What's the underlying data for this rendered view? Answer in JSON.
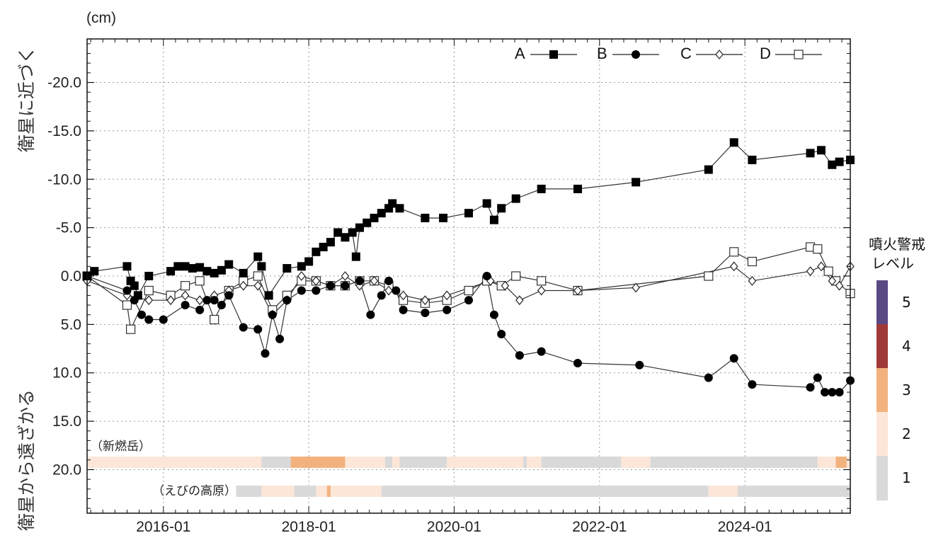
{
  "chart_data": {
    "type": "line",
    "unit_label": "(cm)",
    "ylabel_top": "衛星に近づく",
    "ylabel_bottom": "衛星から遠ざかる",
    "ylim": [
      -24.5,
      24.5
    ],
    "y_reversed": true,
    "y_ticks": [
      -20,
      -15,
      -10,
      -5,
      0,
      5,
      10,
      15,
      20
    ],
    "y_tick_labels": [
      "-20.0",
      "-15.0",
      "-10.0",
      "-5.0",
      "0.0",
      "5.0",
      "10.0",
      "15.0",
      "20.0"
    ],
    "xlim": [
      2014.95,
      2025.45
    ],
    "x_ticks": [
      2016,
      2018,
      2020,
      2022,
      2024
    ],
    "x_tick_labels": [
      "2016-01",
      "2018-01",
      "2020-01",
      "2022-01",
      "2024-01"
    ],
    "grid": true,
    "legend_position": "top-right",
    "series": [
      {
        "name": "A",
        "marker": "filled-square",
        "x": [
          2014.95,
          2015.05,
          2015.5,
          2015.55,
          2015.6,
          2015.65,
          2015.8,
          2016.1,
          2016.2,
          2016.3,
          2016.4,
          2016.5,
          2016.6,
          2016.7,
          2016.8,
          2016.9,
          2017.1,
          2017.3,
          2017.35,
          2017.45,
          2017.7,
          2017.9,
          2018.0,
          2018.1,
          2018.2,
          2018.3,
          2018.4,
          2018.5,
          2018.6,
          2018.65,
          2018.7,
          2018.8,
          2018.9,
          2019.0,
          2019.1,
          2019.15,
          2019.25,
          2019.6,
          2019.85,
          2020.2,
          2020.45,
          2020.55,
          2020.65,
          2020.85,
          2021.2,
          2021.7,
          2022.5,
          2023.5,
          2023.85,
          2024.1,
          2024.9,
          2025.05,
          2025.2,
          2025.3,
          2025.45
        ],
        "y": [
          0,
          -0.5,
          -1,
          0.5,
          1,
          2,
          0,
          -0.5,
          -1,
          -1,
          -0.8,
          -0.9,
          -0.5,
          -0.3,
          -0.6,
          -1.2,
          -0.3,
          -2,
          -1,
          2,
          -0.8,
          -1,
          -1.5,
          -2.5,
          -3,
          -3.5,
          -4.5,
          -4,
          -4.5,
          -2,
          -5,
          -5.5,
          -6,
          -6.5,
          -7,
          -7.5,
          -7,
          -6,
          -6,
          -6.5,
          -7.5,
          -5.8,
          -7,
          -8,
          -9,
          -9,
          -9.7,
          -11,
          -13.8,
          -12,
          -12.7,
          -13,
          -11.5,
          -11.8,
          -12
        ]
      },
      {
        "name": "B",
        "marker": "filled-circle",
        "x": [
          2014.95,
          2015.5,
          2015.6,
          2015.7,
          2015.8,
          2016.0,
          2016.3,
          2016.5,
          2016.6,
          2016.7,
          2016.8,
          2016.9,
          2017.1,
          2017.3,
          2017.4,
          2017.5,
          2017.6,
          2017.7,
          2017.9,
          2018.1,
          2018.3,
          2018.5,
          2018.7,
          2018.85,
          2019.0,
          2019.1,
          2019.2,
          2019.3,
          2019.6,
          2019.9,
          2020.2,
          2020.45,
          2020.55,
          2020.65,
          2020.9,
          2021.2,
          2021.7,
          2022.55,
          2023.5,
          2023.85,
          2024.1,
          2024.9,
          2025.0,
          2025.1,
          2025.2,
          2025.3,
          2025.45
        ],
        "y": [
          0,
          1.5,
          2.5,
          4,
          4.5,
          4.5,
          3,
          3.5,
          2.5,
          2.5,
          3,
          2,
          5.3,
          5.5,
          8,
          4,
          6.5,
          2.5,
          1.5,
          1.5,
          1,
          1,
          0.5,
          4,
          2,
          0.5,
          1.5,
          3.5,
          3.8,
          3.5,
          2.5,
          0,
          4,
          6,
          8.2,
          7.8,
          9,
          9.2,
          10.5,
          8.5,
          11.2,
          11.5,
          10.5,
          12,
          12,
          12,
          10.8
        ]
      },
      {
        "name": "C",
        "marker": "open-diamond",
        "x": [
          2014.95,
          2015.5,
          2015.8,
          2016.1,
          2016.3,
          2016.5,
          2016.7,
          2016.9,
          2017.1,
          2017.3,
          2017.5,
          2017.7,
          2017.9,
          2018.1,
          2018.3,
          2018.5,
          2018.7,
          2018.9,
          2019.1,
          2019.3,
          2019.6,
          2019.9,
          2020.5,
          2020.7,
          2020.9,
          2021.2,
          2021.7,
          2022.5,
          2023.85,
          2024.1,
          2024.9,
          2025.05,
          2025.2,
          2025.3,
          2025.45
        ],
        "y": [
          0.5,
          2,
          2.5,
          2.5,
          2,
          2.5,
          2,
          1.5,
          1,
          1,
          4,
          2.5,
          0,
          0.5,
          1,
          0,
          1,
          0.5,
          1.5,
          2,
          2.5,
          2,
          0.5,
          1,
          2.5,
          1.5,
          1.5,
          1.2,
          -1,
          0.5,
          -0.5,
          -1,
          0.5,
          1,
          -1
        ]
      },
      {
        "name": "D",
        "marker": "open-square",
        "x": [
          2014.95,
          2015.5,
          2015.55,
          2015.8,
          2016.1,
          2016.3,
          2016.5,
          2016.7,
          2016.9,
          2017.1,
          2017.3,
          2017.5,
          2017.7,
          2017.9,
          2018.1,
          2018.3,
          2018.5,
          2018.7,
          2018.9,
          2019.1,
          2019.3,
          2019.6,
          2019.9,
          2020.2,
          2020.45,
          2020.65,
          2020.85,
          2021.2,
          2021.7,
          2023.5,
          2023.85,
          2024.1,
          2024.9,
          2025.0,
          2025.15,
          2025.25,
          2025.45
        ],
        "y": [
          0,
          3,
          5.5,
          1.5,
          2,
          1,
          0.5,
          4.5,
          1.5,
          0.5,
          0,
          3.5,
          2,
          0.5,
          0.5,
          1,
          1,
          0.5,
          0.5,
          1,
          2.5,
          2.8,
          2.5,
          1.5,
          0.5,
          1,
          0,
          0.5,
          1.5,
          0,
          -2.5,
          -1.5,
          -3,
          -2.8,
          -0.5,
          0.5,
          1.8
        ]
      }
    ],
    "alert_bands": [
      {
        "label": "（新燃岳）",
        "segments": [
          {
            "from": 2014.95,
            "to": 2017.35,
            "level": 2
          },
          {
            "from": 2017.35,
            "to": 2017.75,
            "level": 1
          },
          {
            "from": 2017.75,
            "to": 2018.5,
            "level": 3
          },
          {
            "from": 2018.5,
            "to": 2019.05,
            "level": 2
          },
          {
            "from": 2019.05,
            "to": 2019.15,
            "level": 1
          },
          {
            "from": 2019.15,
            "to": 2019.25,
            "level": 2
          },
          {
            "from": 2019.25,
            "to": 2019.9,
            "level": 1
          },
          {
            "from": 2019.9,
            "to": 2020.95,
            "level": 2
          },
          {
            "from": 2020.95,
            "to": 2021.0,
            "level": 1
          },
          {
            "from": 2021.0,
            "to": 2021.2,
            "level": 2
          },
          {
            "from": 2021.2,
            "to": 2022.3,
            "level": 1
          },
          {
            "from": 2022.3,
            "to": 2022.7,
            "level": 2
          },
          {
            "from": 2022.7,
            "to": 2025.0,
            "level": 1
          },
          {
            "from": 2025.0,
            "to": 2025.25,
            "level": 2
          },
          {
            "from": 2025.25,
            "to": 2025.4,
            "level": 3
          },
          {
            "from": 2025.4,
            "to": 2025.45,
            "level": 2
          }
        ]
      },
      {
        "label": "（えびの高原）",
        "segments": [
          {
            "from": 2017.0,
            "to": 2017.35,
            "level": 1
          },
          {
            "from": 2017.35,
            "to": 2017.8,
            "level": 2
          },
          {
            "from": 2017.8,
            "to": 2018.1,
            "level": 1
          },
          {
            "from": 2018.1,
            "to": 2018.25,
            "level": 2
          },
          {
            "from": 2018.25,
            "to": 2018.3,
            "level": 3
          },
          {
            "from": 2018.3,
            "to": 2019.0,
            "level": 2
          },
          {
            "from": 2019.0,
            "to": 2023.5,
            "level": 1
          },
          {
            "from": 2023.5,
            "to": 2023.9,
            "level": 2
          },
          {
            "from": 2023.9,
            "to": 2025.45,
            "level": 1
          }
        ]
      }
    ],
    "alert_legend": {
      "title_line1": "噴火警戒",
      "title_line2": "レベル",
      "levels": [
        {
          "level": "5",
          "color": "#5a4a84"
        },
        {
          "level": "4",
          "color": "#a03a38"
        },
        {
          "level": "3",
          "color": "#f2b27e"
        },
        {
          "level": "2",
          "color": "#fce6d8"
        },
        {
          "level": "1",
          "color": "#d9d9d9"
        }
      ]
    }
  }
}
